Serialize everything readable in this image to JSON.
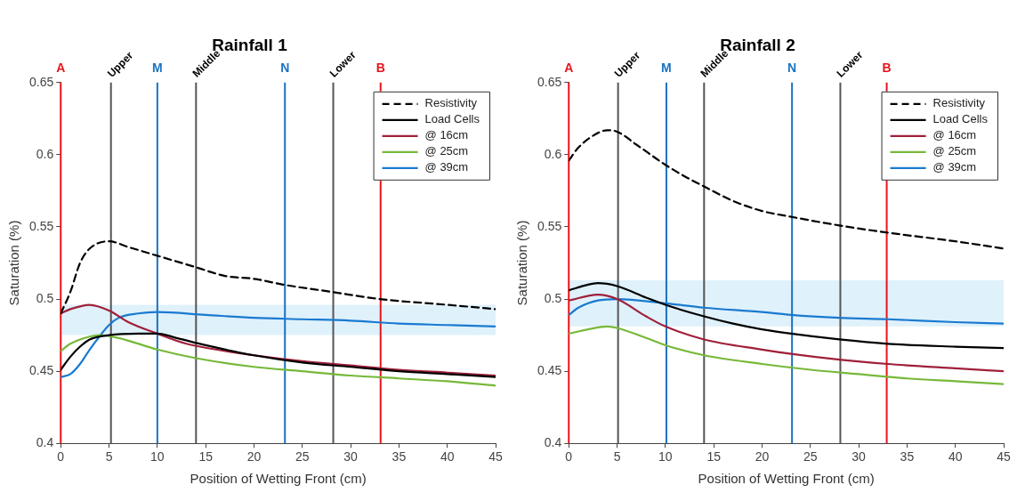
{
  "chart_data": [
    {
      "type": "line",
      "title": "Rainfall 1",
      "xlabel": "Position of Wetting Front (cm)",
      "ylabel": "Saturation (%)",
      "xlim": [
        0,
        45
      ],
      "ylim": [
        0.4,
        0.65
      ],
      "xticks": [
        0,
        5,
        10,
        15,
        20,
        25,
        30,
        35,
        40,
        45
      ],
      "yticks": [
        0.4,
        0.45,
        0.5,
        0.55,
        0.6,
        0.65
      ],
      "grid": false,
      "legend": "top right",
      "marker": "none",
      "series": [
        {
          "name": "Resistivity",
          "color": "#000000",
          "line_style": "dashed",
          "x": [
            0,
            1,
            2,
            3,
            5,
            7,
            10,
            14,
            17,
            20,
            23,
            28,
            33,
            40,
            45
          ],
          "values": [
            0.49,
            0.505,
            0.525,
            0.535,
            0.54,
            0.536,
            0.53,
            0.522,
            0.516,
            0.514,
            0.51,
            0.505,
            0.5,
            0.496,
            0.493
          ]
        },
        {
          "name": "Load Cells",
          "color": "#000000",
          "x": [
            0,
            1,
            2,
            3,
            5,
            8,
            10,
            12,
            15,
            20,
            25,
            30,
            35,
            40,
            45
          ],
          "values": [
            0.451,
            0.46,
            0.467,
            0.472,
            0.475,
            0.476,
            0.476,
            0.473,
            0.468,
            0.461,
            0.456,
            0.453,
            0.45,
            0.448,
            0.446
          ]
        },
        {
          "name": "@ 16cm",
          "color": "#a0203a",
          "x": [
            0,
            1,
            3,
            5,
            7,
            10,
            13,
            17,
            20,
            25,
            30,
            35,
            40,
            45
          ],
          "values": [
            0.49,
            0.493,
            0.496,
            0.492,
            0.484,
            0.476,
            0.469,
            0.464,
            0.461,
            0.457,
            0.454,
            0.451,
            0.449,
            0.447
          ]
        },
        {
          "name": "@ 25cm",
          "color": "#77b83a",
          "x": [
            0,
            1,
            3,
            4,
            6,
            10,
            14,
            20,
            25,
            30,
            35,
            40,
            45
          ],
          "values": [
            0.464,
            0.469,
            0.474,
            0.475,
            0.473,
            0.465,
            0.459,
            0.453,
            0.45,
            0.447,
            0.445,
            0.443,
            0.44
          ]
        },
        {
          "name": "@ 39cm",
          "color": "#1a7ad0",
          "x": [
            0,
            1,
            2,
            3,
            4,
            5,
            6,
            8,
            10,
            15,
            20,
            25,
            30,
            35,
            40,
            45
          ],
          "values": [
            0.446,
            0.448,
            0.455,
            0.465,
            0.474,
            0.482,
            0.487,
            0.49,
            0.491,
            0.489,
            0.487,
            0.486,
            0.485,
            0.483,
            0.482,
            0.481
          ]
        }
      ],
      "ref_lines": [
        {
          "axis": "x",
          "value": 0,
          "label": "A",
          "color": "#e8141a"
        },
        {
          "axis": "x",
          "value": 5.2,
          "label": "Upper",
          "color": "#555555"
        },
        {
          "axis": "x",
          "value": 10,
          "label": "M",
          "color": "#1a72c0"
        },
        {
          "axis": "x",
          "value": 14,
          "label": "Middle",
          "color": "#555555"
        },
        {
          "axis": "x",
          "value": 23.2,
          "label": "N",
          "color": "#1a72c0"
        },
        {
          "axis": "x",
          "value": 28.2,
          "label": "Lower",
          "color": "#555555"
        },
        {
          "axis": "x",
          "value": 33.1,
          "label": "B",
          "color": "#e8141a"
        }
      ],
      "bands": [
        {
          "axis": "y",
          "from": 0.475,
          "to": 0.496,
          "color": "#dff1fb"
        }
      ]
    },
    {
      "type": "line",
      "title": "Rainfall 2",
      "xlabel": "Position of Wetting Front (cm)",
      "ylabel": "Saturation (%)",
      "xlim": [
        0,
        45
      ],
      "ylim": [
        0.4,
        0.65
      ],
      "xticks": [
        0,
        5,
        10,
        15,
        20,
        25,
        30,
        35,
        40,
        45
      ],
      "yticks": [
        0.4,
        0.45,
        0.5,
        0.55,
        0.6,
        0.65
      ],
      "grid": false,
      "legend": "top right",
      "marker": "none",
      "series": [
        {
          "name": "Resistivity",
          "color": "#000000",
          "line_style": "dashed",
          "x": [
            0,
            1,
            3,
            4,
            5,
            7,
            10,
            12,
            14,
            17,
            20,
            23,
            28,
            33,
            40,
            45
          ],
          "values": [
            0.596,
            0.605,
            0.615,
            0.617,
            0.616,
            0.607,
            0.593,
            0.585,
            0.578,
            0.568,
            0.561,
            0.557,
            0.551,
            0.546,
            0.54,
            0.535
          ]
        },
        {
          "name": "Load Cells",
          "color": "#000000",
          "x": [
            0,
            2,
            3,
            5,
            8,
            10,
            14,
            17,
            20,
            23,
            28,
            33,
            40,
            45
          ],
          "values": [
            0.506,
            0.51,
            0.511,
            0.509,
            0.501,
            0.496,
            0.488,
            0.483,
            0.479,
            0.476,
            0.472,
            0.469,
            0.467,
            0.466
          ]
        },
        {
          "name": "@ 16cm",
          "color": "#a0203a",
          "x": [
            0,
            3,
            5,
            8,
            10,
            14,
            20,
            23,
            28,
            33,
            40,
            45
          ],
          "values": [
            0.499,
            0.503,
            0.5,
            0.488,
            0.481,
            0.472,
            0.465,
            0.462,
            0.458,
            0.455,
            0.452,
            0.45
          ]
        },
        {
          "name": "@ 25cm",
          "color": "#77b83a",
          "x": [
            0,
            2,
            4,
            5,
            8,
            10,
            14,
            20,
            25,
            30,
            35,
            40,
            45
          ],
          "values": [
            0.476,
            0.479,
            0.481,
            0.48,
            0.473,
            0.468,
            0.461,
            0.455,
            0.451,
            0.448,
            0.445,
            0.443,
            0.441
          ]
        },
        {
          "name": "@ 39cm",
          "color": "#1a7ad0",
          "x": [
            0,
            1,
            3,
            5,
            10,
            14,
            20,
            23,
            28,
            33,
            40,
            45
          ],
          "values": [
            0.489,
            0.494,
            0.499,
            0.5,
            0.497,
            0.494,
            0.491,
            0.489,
            0.487,
            0.486,
            0.484,
            0.483
          ]
        }
      ],
      "ref_lines": [
        {
          "axis": "x",
          "value": 0,
          "label": "A",
          "color": "#e8141a"
        },
        {
          "axis": "x",
          "value": 5.1,
          "label": "Upper",
          "color": "#555555"
        },
        {
          "axis": "x",
          "value": 10.1,
          "label": "M",
          "color": "#1a72c0"
        },
        {
          "axis": "x",
          "value": 14,
          "label": "Middle",
          "color": "#555555"
        },
        {
          "axis": "x",
          "value": 23.1,
          "label": "N",
          "color": "#1a72c0"
        },
        {
          "axis": "x",
          "value": 28.1,
          "label": "Lower",
          "color": "#555555"
        },
        {
          "axis": "x",
          "value": 32.9,
          "label": "B",
          "color": "#e8141a"
        }
      ],
      "bands": [
        {
          "axis": "y",
          "from": 0.481,
          "to": 0.513,
          "color": "#dff1fb"
        }
      ]
    }
  ]
}
